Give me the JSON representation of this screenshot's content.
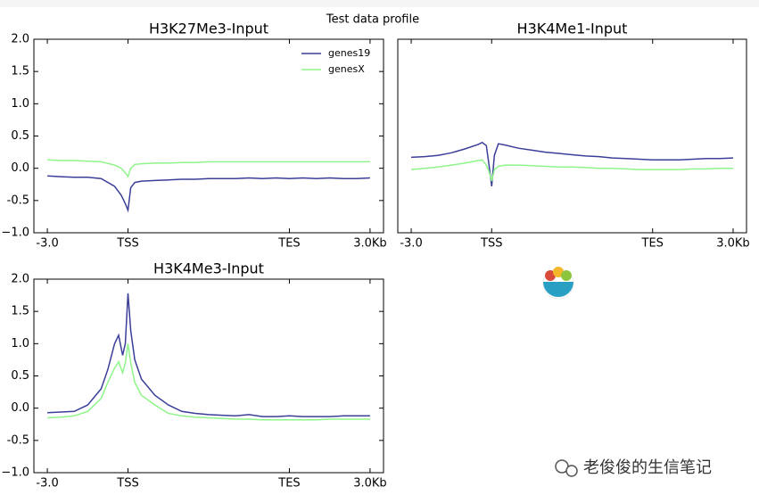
{
  "suptitle": "Test data profile",
  "watermark": "老俊俊的生信笔记",
  "chart_data": [
    {
      "type": "line",
      "title": "H3K27Me3-Input",
      "legend": "upper right",
      "x": [
        0,
        50,
        100,
        150,
        200,
        250,
        275,
        290,
        300,
        310,
        325,
        350,
        400,
        450,
        500,
        550,
        600,
        650,
        700,
        750,
        800,
        850,
        900,
        950,
        1000,
        1050,
        1100,
        1150,
        1200
      ],
      "series": [
        {
          "name": "genes19",
          "color": "#3b3f98",
          "values": [
            -0.12,
            -0.13,
            -0.14,
            -0.14,
            -0.16,
            -0.28,
            -0.42,
            -0.55,
            -0.65,
            -0.3,
            -0.22,
            -0.2,
            -0.19,
            -0.18,
            -0.17,
            -0.17,
            -0.16,
            -0.16,
            -0.16,
            -0.15,
            -0.16,
            -0.15,
            -0.16,
            -0.15,
            -0.16,
            -0.15,
            -0.16,
            -0.16,
            -0.15
          ]
        },
        {
          "name": "genesX",
          "color": "#8ff58a",
          "values": [
            0.13,
            0.12,
            0.12,
            0.11,
            0.1,
            0.05,
            0.0,
            -0.07,
            -0.13,
            0.0,
            0.06,
            0.07,
            0.08,
            0.08,
            0.09,
            0.09,
            0.1,
            0.1,
            0.1,
            0.1,
            0.1,
            0.1,
            0.1,
            0.1,
            0.1,
            0.1,
            0.1,
            0.1,
            0.1
          ]
        }
      ],
      "xlim": [
        -50,
        1250
      ],
      "xticks": [
        {
          "value": 0,
          "label": "-3.0"
        },
        {
          "value": 300,
          "label": "TSS"
        },
        {
          "value": 900,
          "label": "TES"
        },
        {
          "value": 1200,
          "label": "3.0Kb"
        }
      ],
      "ylim": [
        -1,
        2
      ],
      "yticks": [
        {
          "value": -1,
          "label": "−1.0"
        },
        -0.5,
        {
          "value": 0,
          "label": "0.0"
        },
        0.5,
        {
          "value": 1,
          "label": "1.0"
        },
        1.5,
        {
          "value": 2,
          "label": "2.0"
        }
      ]
    },
    {
      "type": "line",
      "title": "H3K4Me1-Input",
      "x": [
        0,
        50,
        100,
        150,
        200,
        250,
        265,
        280,
        290,
        300,
        310,
        325,
        350,
        400,
        450,
        500,
        550,
        600,
        650,
        700,
        750,
        800,
        850,
        900,
        950,
        1000,
        1050,
        1100,
        1150,
        1200
      ],
      "series": [
        {
          "color": "#3b3f98",
          "values": [
            0.17,
            0.18,
            0.2,
            0.24,
            0.3,
            0.37,
            0.4,
            0.35,
            0.05,
            -0.28,
            0.2,
            0.38,
            0.36,
            0.31,
            0.28,
            0.25,
            0.23,
            0.21,
            0.19,
            0.18,
            0.16,
            0.15,
            0.14,
            0.13,
            0.13,
            0.13,
            0.14,
            0.15,
            0.15,
            0.16
          ]
        },
        {
          "color": "#8ff58a",
          "values": [
            -0.02,
            0.0,
            0.02,
            0.05,
            0.08,
            0.12,
            0.13,
            0.05,
            -0.05,
            -0.2,
            -0.02,
            0.03,
            0.05,
            0.05,
            0.04,
            0.03,
            0.02,
            0.02,
            0.01,
            0.0,
            0.0,
            -0.01,
            -0.02,
            -0.02,
            -0.02,
            -0.02,
            -0.01,
            -0.01,
            0.0,
            0.0
          ]
        }
      ],
      "xlim": [
        -50,
        1250
      ],
      "xticks": [
        {
          "value": 0,
          "label": "-3.0"
        },
        {
          "value": 300,
          "label": "TSS"
        },
        {
          "value": 900,
          "label": "TES"
        },
        {
          "value": 1200,
          "label": "3.0Kb"
        }
      ],
      "ylim": [
        -1,
        2
      ],
      "yticks": []
    },
    {
      "type": "line",
      "title": "H3K4Me3-Input",
      "x": [
        0,
        50,
        100,
        150,
        200,
        225,
        250,
        265,
        280,
        290,
        300,
        310,
        325,
        350,
        400,
        450,
        500,
        550,
        600,
        650,
        700,
        750,
        800,
        850,
        900,
        950,
        1000,
        1050,
        1100,
        1150,
        1200
      ],
      "series": [
        {
          "color": "#3b3f98",
          "values": [
            -0.07,
            -0.06,
            -0.05,
            0.05,
            0.3,
            0.6,
            1.0,
            1.13,
            0.82,
            1.0,
            1.78,
            1.2,
            0.75,
            0.45,
            0.2,
            0.05,
            -0.05,
            -0.08,
            -0.1,
            -0.11,
            -0.12,
            -0.1,
            -0.13,
            -0.13,
            -0.12,
            -0.13,
            -0.13,
            -0.13,
            -0.12,
            -0.12,
            -0.12
          ]
        },
        {
          "color": "#8ff58a",
          "values": [
            -0.15,
            -0.14,
            -0.12,
            -0.05,
            0.15,
            0.4,
            0.62,
            0.72,
            0.55,
            0.7,
            1.0,
            0.7,
            0.4,
            0.2,
            0.05,
            -0.08,
            -0.12,
            -0.14,
            -0.15,
            -0.16,
            -0.17,
            -0.17,
            -0.18,
            -0.18,
            -0.18,
            -0.18,
            -0.18,
            -0.17,
            -0.17,
            -0.17,
            -0.17
          ]
        }
      ],
      "xlim": [
        -50,
        1250
      ],
      "xticks": [
        {
          "value": 0,
          "label": "-3.0"
        },
        {
          "value": 300,
          "label": "TSS"
        },
        {
          "value": 900,
          "label": "TES"
        },
        {
          "value": 1200,
          "label": "3.0Kb"
        }
      ],
      "ylim": [
        -1,
        2
      ],
      "yticks": [
        {
          "value": -1,
          "label": "−1.0"
        },
        -0.5,
        {
          "value": 0,
          "label": "0.0"
        },
        0.5,
        {
          "value": 1,
          "label": "1.0"
        },
        1.5,
        {
          "value": 2,
          "label": "2.0"
        }
      ]
    }
  ]
}
